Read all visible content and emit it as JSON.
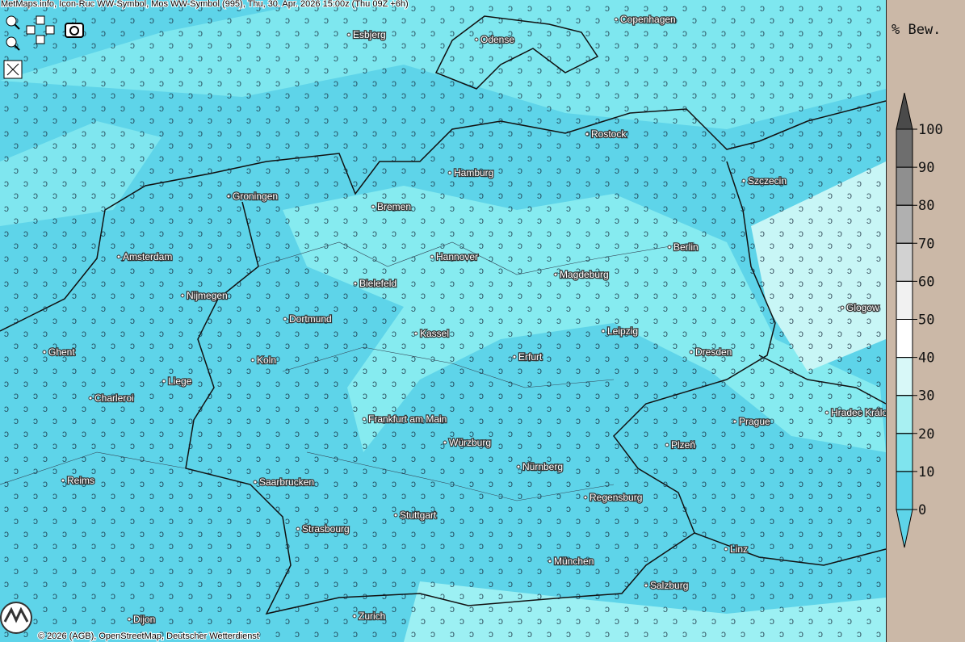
{
  "header": {
    "title": "MetMaps.info, Icon-Ruc WW-Symbol, Mos WW-Symbol (995), Thu, 30. Apr. 2026 15:00z (Thu 09Z +6h)"
  },
  "map": {
    "cities": [
      "Esbjerg",
      "Odense",
      "Copenhagen",
      "Rostock",
      "Hamburg",
      "Szczecin",
      "Groningen",
      "Bremen",
      "Berlin",
      "Amsterdam",
      "Hannover",
      "Magdeburg",
      "Bielefeld",
      "Nijmegen",
      "Glogow",
      "Dortmund",
      "Leipzig",
      "Kassel",
      "Ghent",
      "Dresden",
      "Erfurt",
      "Koln",
      "Liege",
      "Charleroi",
      "Hradec Králové",
      "Frankfurt am Main",
      "Prague",
      "Würzburg",
      "Plzeň",
      "Nürnberg",
      "Reims",
      "Saarbrucken",
      "Regensburg",
      "Stuttgart",
      "Strasbourg",
      "Linz",
      "München",
      "Salzburg",
      "Dijon",
      "Zurich"
    ]
  },
  "legend": {
    "title": "% Bew.",
    "levels": [
      100,
      90,
      80,
      70,
      60,
      50,
      40,
      30,
      20,
      10,
      0
    ]
  },
  "footer": {
    "copyright": "© 2026 (AGB), OpenStreetMap, Deutscher Wetterdienst"
  }
}
